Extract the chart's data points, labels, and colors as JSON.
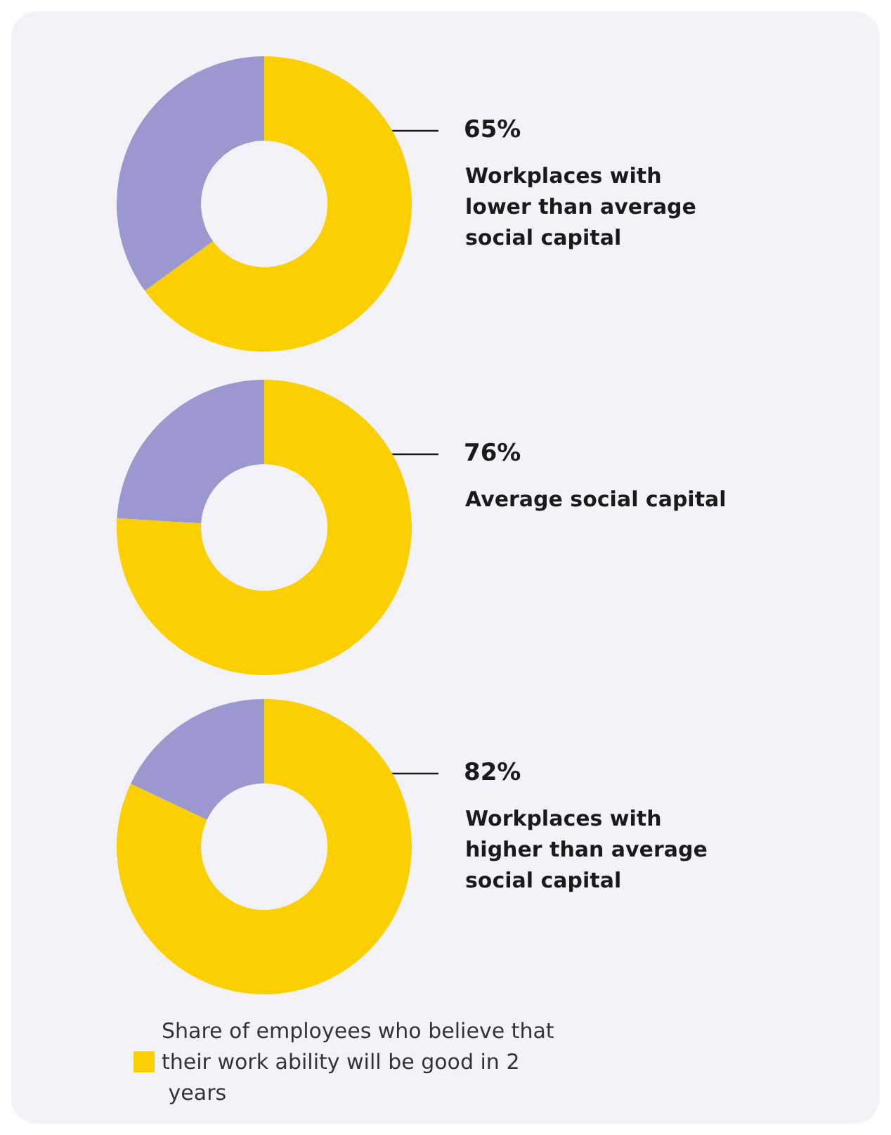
{
  "chart_data": [
    {
      "type": "donut",
      "title": "Workplaces with lower than average social capital",
      "categories": [
        null,
        null
      ],
      "values": [
        65,
        35
      ],
      "colors": [
        "#fccf00",
        "#9b97cf"
      ],
      "value_labels": [
        "65%",
        null
      ]
    },
    {
      "type": "donut",
      "title": "Average social capital",
      "categories": [
        null,
        null
      ],
      "values": [
        76,
        24
      ],
      "colors": [
        "#fccf00",
        "#9b97cf"
      ],
      "value_labels": [
        "76%",
        null
      ]
    },
    {
      "type": "donut",
      "title": "Workplaces with higher than average social capital",
      "categories": [
        "Share of employees who believe that their work ability will be good in 2 years",
        null
      ],
      "values": [
        82,
        18
      ],
      "colors": [
        "#fccf00",
        "#9b97cf"
      ],
      "value_labels": [
        "82%",
        null
      ],
      "legend": "bottom"
    }
  ]
}
